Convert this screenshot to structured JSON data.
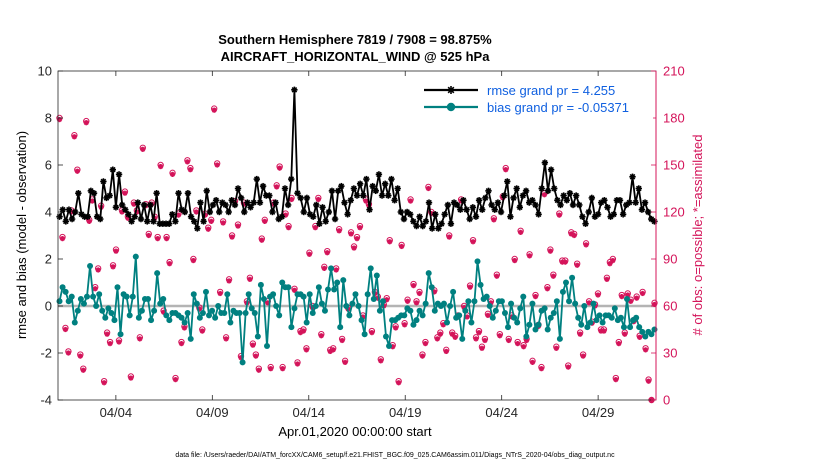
{
  "chart_data": {
    "type": "line",
    "title_line1": "Southern Hemisphere 7819 / 7908 = 98.875%",
    "title_line2": "AIRCRAFT_HORIZONTAL_WIND @ 525 hPa",
    "xlabel": "Apr.01,2020 00:00:00 start",
    "ylabel_left": "rmse and bias (model - observation)",
    "ylabel_right": "# of obs: o=possible; *=assimilated",
    "footer": "data file: /Users/raeder/DAI/ATM_forcXX/CAM6_setup/f.e21.FHIST_BGC.f09_025.CAM6assim.011/Diags_NTrS_2020-04/obs_diag_output.nc",
    "xlim": [
      1,
      32
    ],
    "ylim_left": [
      -4,
      10
    ],
    "ylim_right": [
      0,
      210
    ],
    "x_ticks": [
      {
        "value": 4,
        "label": "04/04"
      },
      {
        "value": 9,
        "label": "04/09"
      },
      {
        "value": 14,
        "label": "04/14"
      },
      {
        "value": 19,
        "label": "04/19"
      },
      {
        "value": 24,
        "label": "04/24"
      },
      {
        "value": 29,
        "label": "04/29"
      }
    ],
    "y_ticks_left": [
      "-4",
      "-2",
      "0",
      "2",
      "4",
      "6",
      "8",
      "10"
    ],
    "y_ticks_right": [
      "0",
      "30",
      "60",
      "90",
      "120",
      "150",
      "180",
      "210"
    ],
    "colors": {
      "rmse": "#000000",
      "bias": "#008080",
      "obs": "#d4145a",
      "legend_text": "#1060e0",
      "zero_line": "#b4b4b4"
    },
    "series": [
      {
        "name": "rmse grand pr = 4.255",
        "values": [
          3.8,
          4.1,
          3.6,
          4.1,
          3.7,
          4.0,
          4.8,
          3.9,
          3.8,
          3.8,
          4.9,
          4.8,
          3.8,
          3.7,
          5.3,
          4.6,
          4.7,
          5.8,
          4.2,
          5.6,
          4.3,
          4.1,
          3.9,
          3.6,
          3.8,
          4.4,
          3.7,
          4.3,
          3.6,
          4.3,
          3.6,
          4.8,
          3.5,
          3.5,
          3.5,
          3.5,
          3.9,
          3.6,
          4.8,
          4.1,
          4.0,
          4.8,
          3.8,
          3.6,
          3.3,
          4.4,
          3.6,
          4.9,
          4.0,
          4.3,
          4.5,
          4.0,
          4.4,
          4.3,
          4.0,
          4.5,
          4.3,
          5.0,
          4.6,
          4.0,
          4.4,
          4.2,
          4.4,
          5.4,
          4.4,
          5.1,
          4.7,
          4.7,
          4.0,
          4.4,
          3.7,
          3.8,
          5.0,
          4.3,
          5.4,
          9.2,
          4.8,
          4.6,
          4.0,
          4.6,
          3.9,
          3.8,
          4.3,
          3.5,
          4.2,
          3.6,
          4.0,
          4.9,
          3.7,
          4.9,
          5.1,
          4.4,
          3.9,
          4.5,
          5.0,
          4.7,
          5.2,
          4.7,
          5.4,
          4.1,
          5.1,
          4.9,
          5.6,
          4.7,
          5.2,
          4.7,
          5.4,
          4.5,
          5.0,
          4.0,
          3.7,
          4.0,
          3.9,
          3.6,
          3.4,
          3.8,
          3.4,
          3.6,
          4.4,
          3.3,
          3.9,
          3.3,
          3.5,
          3.9,
          4.3,
          3.5,
          4.4,
          4.3,
          4.1,
          4.5,
          4.1,
          3.7,
          4.2,
          3.8,
          4.5,
          4.1,
          4.6,
          4.9,
          4.3,
          4.1,
          4.4,
          4.0,
          4.7,
          5.3,
          3.8,
          4.6,
          5.0,
          4.2,
          4.7,
          4.9,
          4.4,
          4.5,
          4.3,
          3.9,
          5.0,
          6.1,
          4.9,
          5.8,
          5.0,
          4.5,
          4.3,
          4.7,
          4.5,
          4.8,
          4.3,
          4.7,
          4.3,
          3.8,
          3.5,
          4.0,
          4.6,
          3.8,
          3.9,
          4.4,
          4.5,
          4.2,
          3.8,
          3.9,
          4.5,
          4.5,
          3.9,
          4.3,
          4.4,
          5.5,
          4.4,
          5.0,
          4.1,
          4.4,
          4.0,
          3.7,
          3.6
        ]
      },
      {
        "name": "bias grand pr = -0.05371",
        "values": [
          0.2,
          0.8,
          0.6,
          0.2,
          0.4,
          -0.7,
          -0.2,
          0.3,
          0.1,
          0.4,
          1.7,
          0.4,
          0.0,
          0.5,
          -0.2,
          -0.5,
          -0.1,
          -0.3,
          -0.6,
          0.8,
          -1.2,
          0.5,
          0.4,
          -0.4,
          0.4,
          2.1,
          -0.5,
          -0.2,
          0.3,
          0.3,
          -0.6,
          -0.2,
          1.4,
          0.1,
          0.3,
          -0.4,
          -0.6,
          -0.3,
          -0.3,
          -0.4,
          -0.5,
          -0.7,
          -0.3,
          -1.4,
          0.5,
          0.1,
          -0.5,
          -0.3,
          0.6,
          -0.4,
          -0.2,
          -0.5,
          0.0,
          -0.3,
          -0.3,
          0.5,
          -0.7,
          -0.2,
          -0.3,
          -0.3,
          -2.4,
          -0.3,
          0.5,
          -0.1,
          -0.3,
          -1.3,
          0.9,
          0.3,
          -1.7,
          0.4,
          0.5,
          0.0,
          -0.4,
          1.0,
          0.8,
          0.8,
          -0.9,
          -0.1,
          0.5,
          0.5,
          0.4,
          -0.7,
          0.5,
          -0.3,
          0.0,
          0.8,
          0.1,
          -0.2,
          0.7,
          1.6,
          0.7,
          1.0,
          -0.9,
          1.1,
          0.0,
          -0.4,
          0.1,
          0.5,
          0.0,
          -0.6,
          -1.2,
          0.5,
          1.6,
          0.3,
          1.3,
          -0.2,
          0.2,
          -1.3,
          -1.7,
          -0.6,
          -0.6,
          -0.5,
          -0.4,
          -0.4,
          -0.1,
          -0.2,
          -0.8,
          -0.6,
          -0.2,
          -0.4,
          0.1,
          1.4,
          0.8,
          -0.2,
          0.1,
          0.0,
          0.1,
          -0.7,
          0.0,
          0.6,
          -0.5,
          -0.4,
          -1.4,
          -0.2,
          0.2,
          -0.7,
          0.2,
          1.9,
          0.9,
          0.3,
          0.4,
          0.0,
          -0.5,
          -0.2,
          0.2,
          0.2,
          -0.3,
          -0.9,
          0.1,
          -0.5,
          -0.7,
          -0.1,
          0.4,
          -1.3,
          -0.8,
          0.1,
          -1.0,
          -0.8,
          -0.2,
          -0.1,
          -1.0,
          -0.5,
          -0.3,
          0.2,
          -1.4,
          0.6,
          1.0,
          0.2,
          1.2,
          0.1,
          -0.5,
          -0.8,
          0.0,
          -0.9,
          -0.7,
          0.1,
          -0.6,
          -0.4,
          -0.7,
          -0.4,
          -0.4,
          -0.5,
          -0.1,
          -0.6,
          -0.5,
          -0.9,
          0.3,
          -0.9,
          -0.6,
          -0.5,
          -0.9,
          -1.1,
          -1.3,
          -1.1,
          -1.2,
          -1.0
        ]
      }
    ],
    "obs_counts_possible": [
      180,
      104,
      46,
      31,
      121,
      169,
      147,
      29,
      20,
      178,
      115,
      128,
      72,
      84,
      124,
      12,
      43,
      37,
      86,
      96,
      38,
      121,
      133,
      117,
      15,
      126,
      121,
      40,
      161,
      125,
      106,
      126,
      117,
      104,
      150,
      57,
      104,
      88,
      145,
      14,
      119,
      37,
      47,
      153,
      148,
      90,
      121,
      59,
      45,
      119,
      110,
      115,
      186,
      151,
      69,
      114,
      40,
      77,
      105,
      127,
      112,
      28,
      126,
      63,
      78,
      36,
      29,
      20,
      103,
      115,
      63,
      21,
      126,
      137,
      149,
      21,
      119,
      111,
      129,
      71,
      24,
      44,
      45,
      33,
      94,
      60,
      111,
      129,
      42,
      85,
      95,
      32,
      33,
      84,
      109,
      39,
      25,
      59,
      107,
      98,
      104,
      111,
      54,
      128,
      125,
      44,
      69,
      66,
      26,
      61,
      65,
      102,
      35,
      47,
      12,
      99,
      49,
      64,
      128,
      74,
      63,
      69,
      29,
      37,
      136,
      120,
      70,
      40,
      43,
      49,
      32,
      105,
      43,
      41,
      54,
      128,
      60,
      54,
      73,
      102,
      40,
      44,
      34,
      39,
      55,
      63,
      116,
      80,
      42,
      130,
      148,
      39,
      54,
      90,
      37,
      108,
      35,
      39,
      93,
      25,
      67,
      48,
      21,
      132,
      72,
      96,
      80,
      34,
      119,
      89,
      89,
      22,
      107,
      106,
      87,
      43,
      29,
      100,
      63,
      50,
      61,
      68,
      45,
      45,
      78,
      88,
      90,
      14,
      37,
      67,
      43,
      68,
      64,
      51,
      66,
      41,
      69,
      33,
      13,
      0,
      62
    ],
    "obs_counts_assimilated": [
      179,
      103,
      45,
      30,
      120,
      168,
      146,
      28,
      19,
      177,
      114,
      127,
      71,
      83,
      123,
      11,
      42,
      36,
      85,
      95,
      37,
      120,
      132,
      116,
      14,
      125,
      120,
      39,
      160,
      124,
      105,
      125,
      116,
      103,
      149,
      56,
      103,
      87,
      144,
      13,
      118,
      36,
      46,
      152,
      147,
      89,
      120,
      58,
      44,
      118,
      109,
      114,
      185,
      150,
      68,
      113,
      39,
      76,
      104,
      126,
      111,
      27,
      125,
      62,
      77,
      35,
      28,
      19,
      102,
      114,
      62,
      20,
      125,
      136,
      148,
      20,
      118,
      110,
      128,
      70,
      23,
      43,
      44,
      32,
      93,
      59,
      110,
      128,
      41,
      84,
      94,
      31,
      32,
      83,
      108,
      38,
      24,
      58,
      106,
      97,
      103,
      110,
      53,
      127,
      124,
      43,
      68,
      65,
      25,
      60,
      64,
      101,
      34,
      46,
      11,
      98,
      48,
      63,
      127,
      73,
      62,
      68,
      28,
      36,
      135,
      119,
      69,
      39,
      42,
      48,
      31,
      104,
      42,
      40,
      53,
      127,
      59,
      53,
      72,
      101,
      39,
      43,
      33,
      38,
      54,
      62,
      115,
      79,
      41,
      129,
      147,
      38,
      53,
      89,
      36,
      107,
      34,
      38,
      92,
      24,
      66,
      47,
      20,
      131,
      71,
      95,
      79,
      33,
      118,
      88,
      88,
      21,
      106,
      105,
      86,
      42,
      28,
      99,
      62,
      49,
      60,
      67,
      44,
      44,
      77,
      87,
      89,
      13,
      36,
      66,
      42,
      67,
      63,
      50,
      65,
      40,
      68,
      32,
      12,
      0,
      61
    ]
  }
}
